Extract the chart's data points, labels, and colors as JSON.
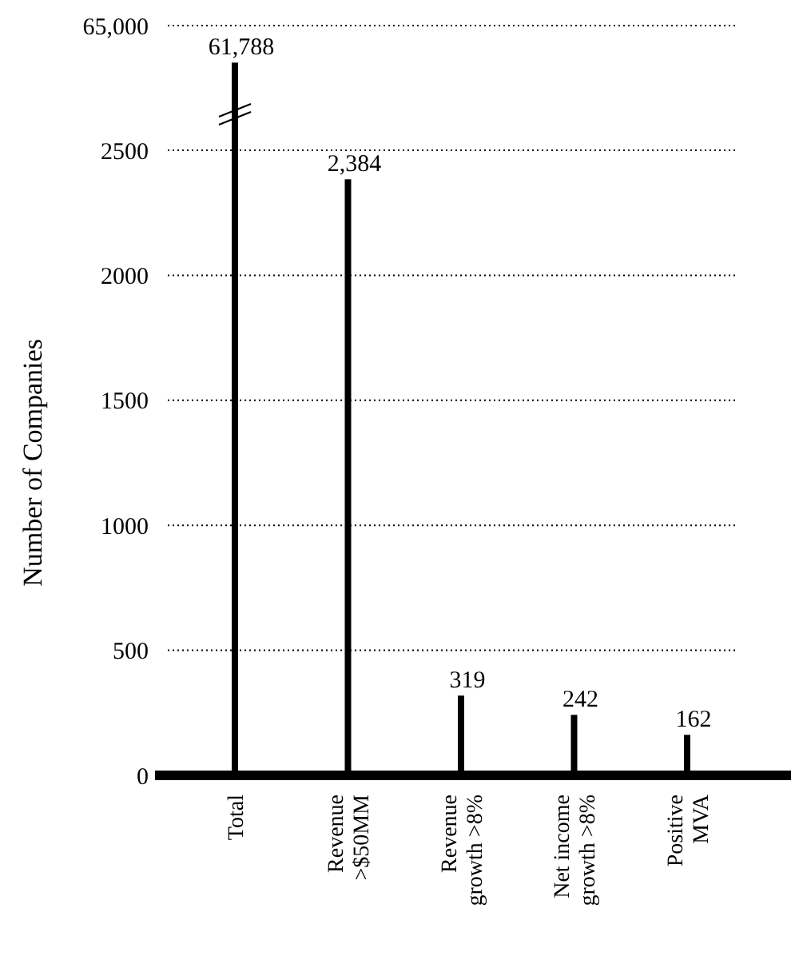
{
  "chart_data": [
    {
      "type": "bar",
      "categories": [
        "Total",
        "Revenue\n>$50MM",
        "Revenue\ngrowth >8%",
        "Net income\ngrowth >8%",
        "Positive\nMVA"
      ],
      "values": [
        61788,
        null,
        null,
        null,
        null
      ],
      "value_labels": [
        "61,788",
        null,
        null,
        null,
        null
      ],
      "color": "#000000",
      "ylim": [
        0,
        65000
      ],
      "yticks": [
        {
          "value": 65000,
          "label": "65,000"
        }
      ],
      "grid": "y"
    },
    {
      "type": "bar",
      "ylabel": "Number of Companies",
      "categories": [
        null,
        null,
        null,
        null,
        null
      ],
      "values": [
        null,
        2384,
        319,
        242,
        162
      ],
      "value_labels": [
        null,
        "2,384",
        "319",
        "242",
        "162"
      ],
      "color": "#000000",
      "ylim": [
        0,
        2500
      ],
      "yticks": [
        0,
        500,
        1000,
        1500,
        2000,
        2500
      ],
      "grid": "y"
    }
  ]
}
